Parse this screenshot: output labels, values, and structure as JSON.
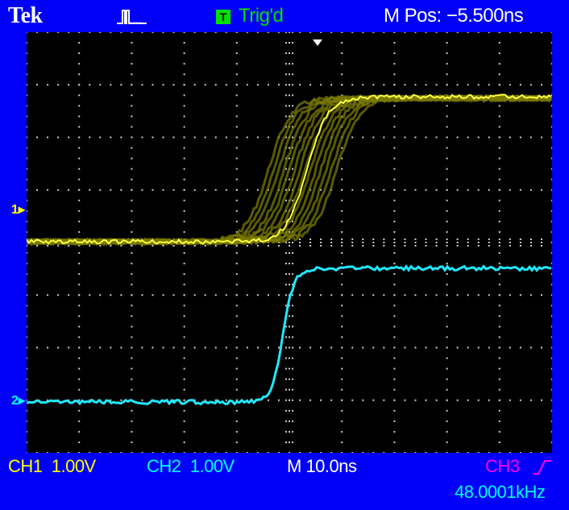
{
  "header": {
    "brand": "Tek",
    "acquisition_icon": "pulse-acquisition-icon",
    "trigger_badge": "T",
    "trigger_status": "Trig'd",
    "horizontal_position": "M Pos: −5.500ns"
  },
  "screen": {
    "ch1_marker": "1",
    "ch2_marker": "2",
    "trigger_position_icon": "down-arrow-icon"
  },
  "footer": {
    "ch1": "CH1  1.00V",
    "ch2": "CH2  1.00V",
    "timebase": "M 10.0ns",
    "trigger_source": "CH3",
    "trigger_slope_icon": "rising-edge-icon",
    "frequency": "48.0001kHz"
  },
  "colors": {
    "background": "#0000f6",
    "screen": "#000000",
    "ch1": "#ffff00",
    "ch1_persistence": "#7a7a00",
    "ch2": "#00ffff",
    "ch3": "#ff00ff",
    "trigger": "#00e000",
    "grid": "#cfcfcf"
  }
}
